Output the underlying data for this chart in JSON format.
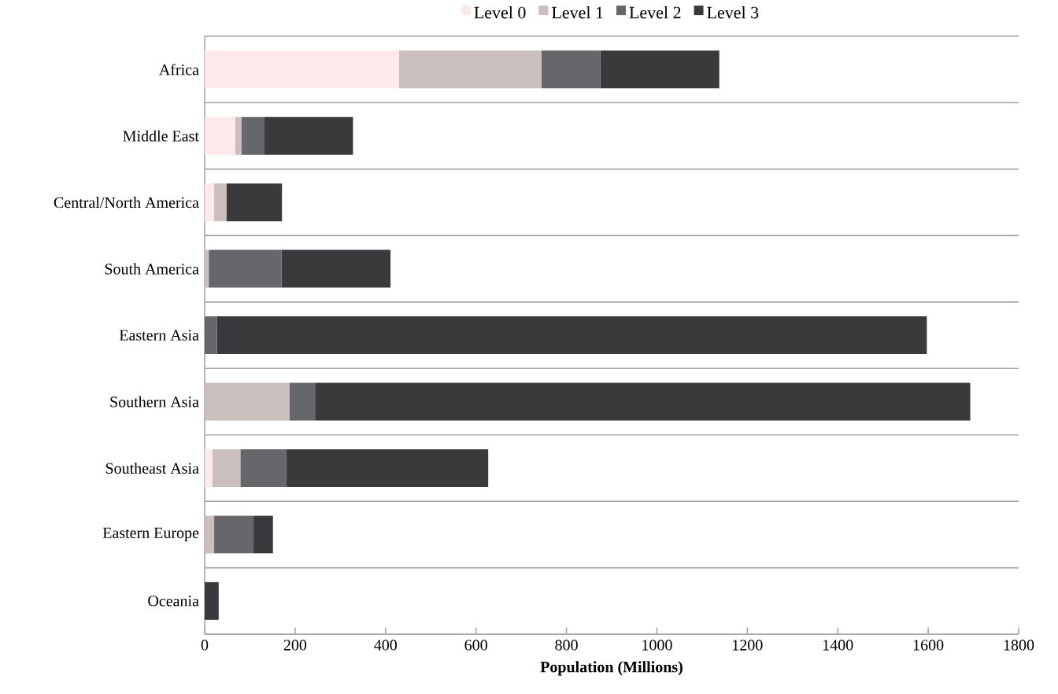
{
  "chart_data": {
    "type": "bar",
    "orientation": "horizontal",
    "stacked": true,
    "xlabel": "**Population (Millions)**",
    "categories": [
      "Africa",
      "Middle East",
      "Central/North America",
      "South America",
      "Eastern Asia",
      "Southern Asia",
      "Southeast Asia",
      "Eastern Europe",
      "Oceania"
    ],
    "series": [
      {
        "name": "Level 0",
        "color": "#fde9ea",
        "values": [
          430,
          67,
          21,
          0,
          0,
          0,
          17,
          0,
          0
        ]
      },
      {
        "name": "Level 1",
        "color": "#cbbfbe",
        "values": [
          315,
          14,
          27,
          9,
          0,
          188,
          62,
          21,
          0
        ]
      },
      {
        "name": "Level 2",
        "color": "#67666b",
        "values": [
          130,
          50,
          0,
          161,
          27,
          56,
          101,
          87,
          0
        ]
      },
      {
        "name": "Level 3",
        "color": "#3a393c",
        "values": [
          263,
          197,
          123,
          241,
          1570,
          1449,
          447,
          43,
          31
        ]
      }
    ],
    "xlim": [
      0,
      1800
    ],
    "xticks": [
      0,
      200,
      400,
      600,
      800,
      1000,
      1200,
      1400,
      1600,
      1800
    ],
    "grid": "y",
    "legend": "top"
  }
}
